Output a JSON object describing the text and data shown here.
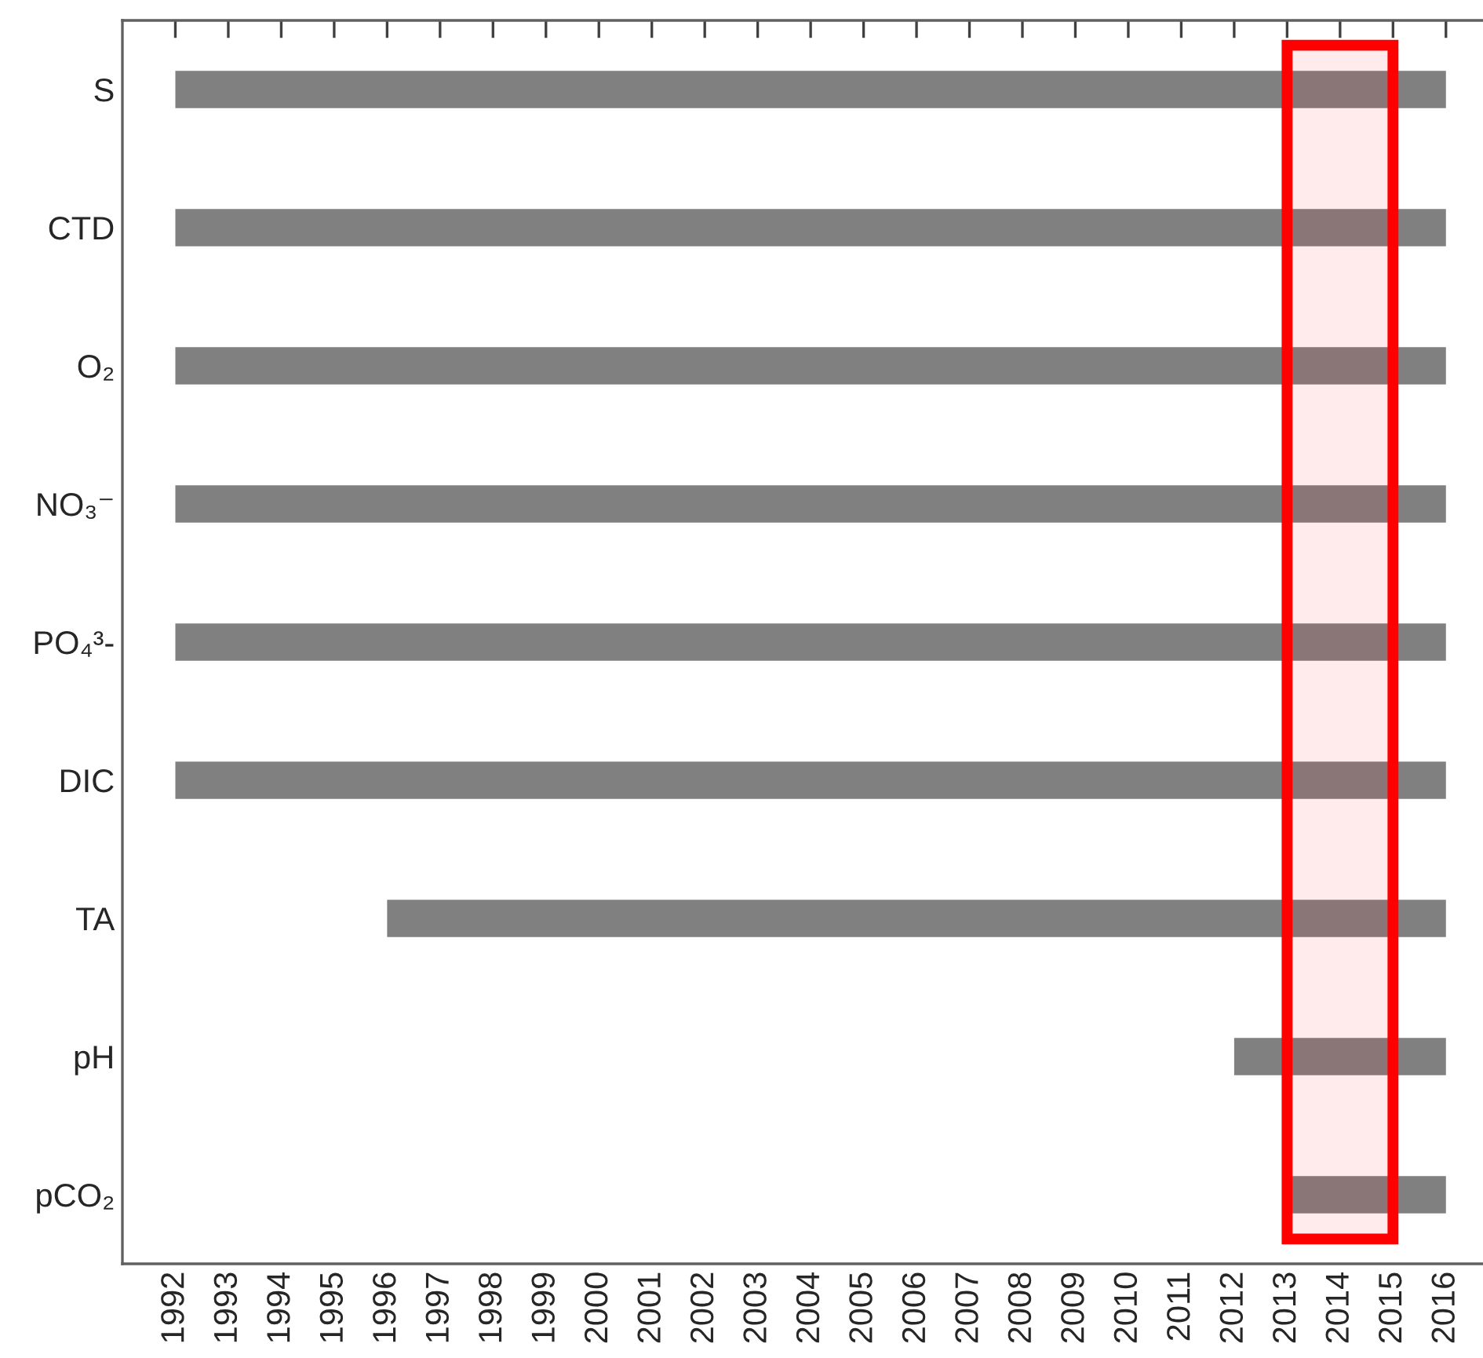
{
  "chart_data": {
    "type": "bar",
    "orientation": "horizontal",
    "categories": [
      "S",
      "CTD",
      "O₂",
      "NO₃⁻",
      "PO₄³-",
      "DIC",
      "TA",
      "pH",
      "pCO₂"
    ],
    "base": [
      1992,
      1992,
      1992,
      1992,
      1992,
      1992,
      1996,
      2012,
      2013
    ],
    "values": [
      24,
      24,
      24,
      24,
      24,
      24,
      20,
      4,
      3
    ],
    "color": "#808080",
    "xlim": [
      1991,
      2016.7
    ],
    "xticks": [
      1992,
      1993,
      1994,
      1995,
      1996,
      1997,
      1998,
      1999,
      2000,
      2001,
      2002,
      2003,
      2004,
      2005,
      2006,
      2007,
      2008,
      2009,
      2010,
      2011,
      2012,
      2013,
      2014,
      2015,
      2016
    ],
    "bands": [
      {
        "axis": "x",
        "from": 2013,
        "to": 2015,
        "color": "#ff0000"
      }
    ],
    "grid": false,
    "legend": false
  }
}
